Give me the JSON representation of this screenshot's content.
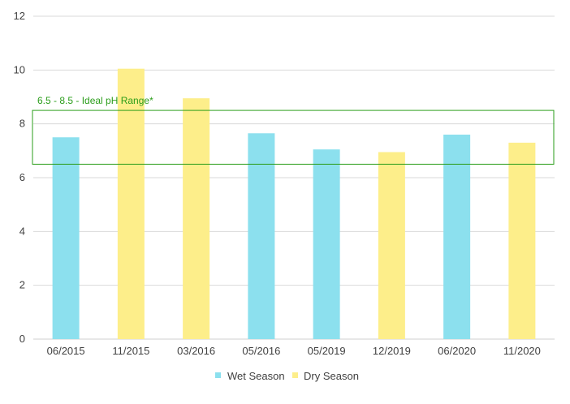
{
  "chart_data": {
    "type": "bar",
    "categories": [
      "06/2015",
      "11/2015",
      "03/2016",
      "05/2016",
      "05/2019",
      "12/2019",
      "06/2020",
      "11/2020"
    ],
    "values": [
      7.5,
      10.05,
      8.95,
      7.65,
      7.05,
      6.95,
      7.6,
      7.3
    ],
    "bar_series": [
      "Wet Season",
      "Dry Season",
      "Dry Season",
      "Wet Season",
      "Wet Season",
      "Dry Season",
      "Wet Season",
      "Dry Season"
    ],
    "series": [
      {
        "name": "Wet Season",
        "color": "#8ce0ee"
      },
      {
        "name": "Dry Season",
        "color": "#fdee8a"
      }
    ],
    "ylim": [
      0,
      12
    ],
    "yticks": [
      0,
      2,
      4,
      6,
      8,
      10,
      12
    ],
    "grid": true,
    "legend_position": "bottom-center",
    "annotation": {
      "label": "6.5 - 8.5 - Ideal pH Range*",
      "range": [
        6.5,
        8.5
      ],
      "color": "#2a9d1a"
    }
  }
}
